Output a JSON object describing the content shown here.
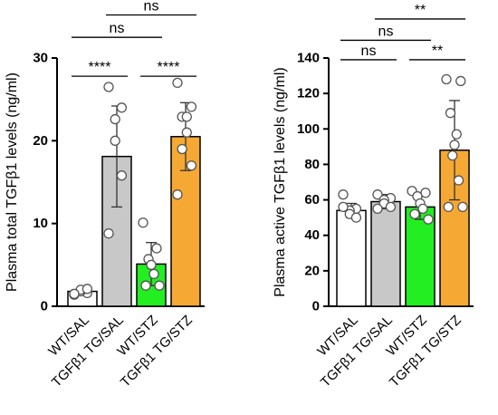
{
  "chart_data": [
    {
      "type": "bar",
      "ylabel": "Plasma total TGFβ1 levels (ng/ml)",
      "ylim": [
        0,
        30
      ],
      "yticks": [
        0,
        10,
        20,
        30
      ],
      "categories": [
        "WT/SAL",
        "TGFβ1 TG/SAL",
        "WT/STZ",
        "TGFβ1 TG/STZ"
      ],
      "colors": [
        "#ffffff",
        "#c8c8c8",
        "#22ee22",
        "#f5a833"
      ],
      "values": [
        1.8,
        18.1,
        5.1,
        20.5
      ],
      "error": [
        0.3,
        6.1,
        2.6,
        4.1
      ],
      "points": [
        [
          1.4,
          1.6,
          1.8,
          2.0,
          2.1,
          1.5
        ],
        [
          26.5,
          24.0,
          22.6,
          20.0,
          15.8,
          8.8
        ],
        [
          10.1,
          7.0,
          5.7,
          5.0,
          3.9,
          2.5,
          2.5
        ],
        [
          27.0,
          24.1,
          22.9,
          22.9,
          21.0,
          19.0,
          17.0,
          13.5
        ]
      ],
      "significance": [
        {
          "from": 0,
          "to": 1,
          "label": "****",
          "y": 27.8
        },
        {
          "from": 2,
          "to": 3,
          "label": "****",
          "y": 27.8
        },
        {
          "from": 0,
          "to": 2,
          "label": "ns",
          "y": 32.5
        },
        {
          "from": 1,
          "to": 3,
          "label": "ns",
          "y": 35.2
        }
      ]
    },
    {
      "type": "bar",
      "ylabel": "Plasma active TGFβ1 levels (ng/ml)",
      "ylim": [
        0,
        140
      ],
      "yticks": [
        0,
        20,
        40,
        60,
        80,
        100,
        120,
        140
      ],
      "categories": [
        "WT/SAL",
        "TGFβ1 TG/SAL",
        "WT/STZ",
        "TGFβ1 TG/STZ"
      ],
      "colors": [
        "#ffffff",
        "#c8c8c8",
        "#22ee22",
        "#f5a833"
      ],
      "values": [
        54,
        59,
        56,
        88
      ],
      "error": [
        4,
        4,
        7,
        28
      ],
      "points": [
        [
          63,
          55,
          54,
          52,
          50,
          56
        ],
        [
          63,
          61,
          60,
          58,
          56,
          55
        ],
        [
          65,
          64,
          62,
          58,
          55,
          52,
          49
        ],
        [
          128,
          127,
          109,
          97,
          91,
          85,
          71,
          56,
          56
        ]
      ],
      "significance": [
        {
          "from": 0,
          "to": 1,
          "label": "ns",
          "y": 139
        },
        {
          "from": 2,
          "to": 3,
          "label": "**",
          "y": 139
        },
        {
          "from": 0,
          "to": 2,
          "label": "ns",
          "y": 150
        },
        {
          "from": 1,
          "to": 3,
          "label": "**",
          "y": 162
        }
      ]
    }
  ]
}
